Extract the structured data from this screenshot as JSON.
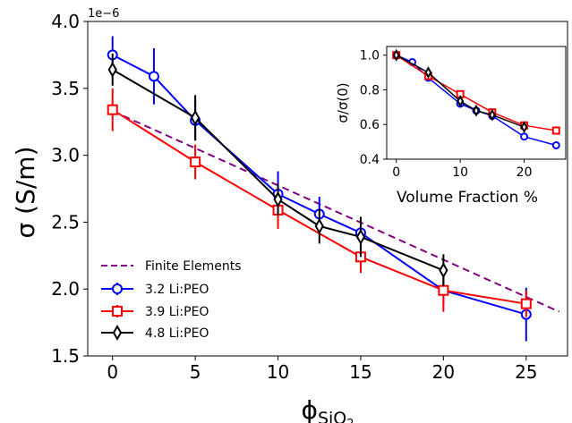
{
  "chart_data": [
    {
      "type": "line",
      "title": "",
      "offset_label": "1e−6",
      "ylabel": "σ (S/m)",
      "xlabel_base": "ϕ",
      "xlabel_sub": "SiO",
      "xlabel_subsub": "2",
      "xlim": [
        -1.5,
        27.5
      ],
      "ylim": [
        1.5,
        4.0
      ],
      "xticks": [
        0,
        5,
        10,
        15,
        20,
        25
      ],
      "xtick_labels": [
        "0",
        "5",
        "10",
        "15",
        "20",
        "25"
      ],
      "yticks": [
        1.5,
        2.0,
        2.5,
        3.0,
        3.5,
        4.0
      ],
      "ytick_labels": [
        "1.5",
        "2.0",
        "2.5",
        "3.0",
        "3.5",
        "4.0"
      ],
      "legend_position": "lower-left",
      "series": [
        {
          "name": "Finite Elements",
          "color": "#800080",
          "style": "dashed",
          "marker": "none",
          "x": [
            0,
            27
          ],
          "y": [
            3.33,
            1.83
          ]
        },
        {
          "name": "3.2 Li:PEO",
          "color": "#0000ff",
          "style": "solid",
          "marker": "circle",
          "x": [
            0,
            2.5,
            5,
            10,
            12.5,
            15,
            20,
            25
          ],
          "y": [
            3.75,
            3.59,
            3.26,
            2.71,
            2.56,
            2.42,
            1.99,
            1.81
          ],
          "err": [
            0.14,
            0.21,
            0.15,
            0.17,
            0.13,
            0.11,
            0.1,
            0.2
          ]
        },
        {
          "name": "3.9 Li:PEO",
          "color": "#ff0000",
          "style": "solid",
          "marker": "square",
          "x": [
            0,
            5,
            10,
            15,
            20,
            25
          ],
          "y": [
            3.34,
            2.95,
            2.59,
            2.24,
            1.99,
            1.89
          ],
          "err": [
            0.16,
            0.13,
            0.14,
            0.12,
            0.16,
            0.1
          ]
        },
        {
          "name": "4.8 Li:PEO",
          "color": "#000000",
          "style": "solid",
          "marker": "diamond",
          "x": [
            0,
            5,
            10,
            12.5,
            15,
            20
          ],
          "y": [
            3.64,
            3.28,
            2.67,
            2.47,
            2.39,
            2.14
          ],
          "err": [
            0.12,
            0.17,
            0.12,
            0.13,
            0.15,
            0.12
          ]
        }
      ]
    },
    {
      "type": "line",
      "title": "",
      "ylabel": "σ/σ(0)",
      "xlabel": "Volume Fraction %",
      "xlim": [
        -1.5,
        26.5
      ],
      "ylim": [
        0.4,
        1.05
      ],
      "xticks": [
        0,
        10,
        20
      ],
      "xtick_labels": [
        "0",
        "10",
        "20"
      ],
      "yticks": [
        0.4,
        0.6,
        0.8,
        1.0
      ],
      "ytick_labels": [
        "0.4",
        "0.6",
        "0.8",
        "1.0"
      ],
      "series": [
        {
          "name": "3.2 Li:PEO",
          "color": "#0000ff",
          "marker": "circle",
          "x": [
            0,
            2.5,
            5,
            10,
            12.5,
            15,
            20,
            25
          ],
          "y": [
            1.0,
            0.96,
            0.87,
            0.72,
            0.68,
            0.65,
            0.53,
            0.48
          ]
        },
        {
          "name": "3.9 Li:PEO",
          "color": "#ff0000",
          "marker": "square",
          "x": [
            0,
            5,
            10,
            15,
            20,
            25
          ],
          "y": [
            1.0,
            0.88,
            0.775,
            0.67,
            0.595,
            0.565
          ]
        },
        {
          "name": "4.8 Li:PEO",
          "color": "#000000",
          "marker": "diamond",
          "x": [
            0,
            5,
            10,
            12.5,
            15,
            20
          ],
          "y": [
            1.0,
            0.9,
            0.735,
            0.68,
            0.655,
            0.585
          ]
        }
      ]
    }
  ]
}
